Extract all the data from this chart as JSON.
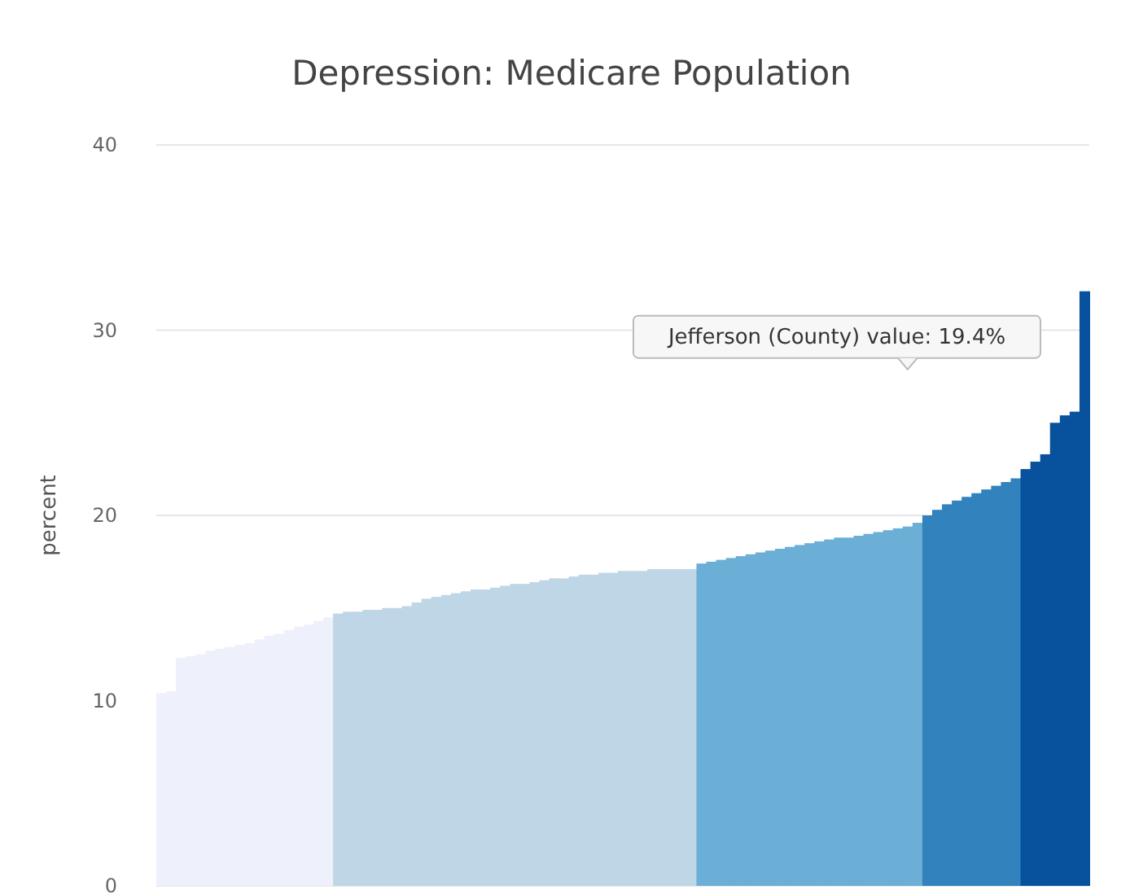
{
  "chart_data": {
    "type": "bar",
    "title": "Depression: Medicare Population",
    "ylabel": "percent",
    "categories": [
      null,
      null,
      null,
      null,
      null,
      null,
      null,
      null,
      null,
      null,
      null,
      null,
      null,
      null,
      null,
      null,
      null,
      null,
      null,
      null,
      null,
      null,
      null,
      null,
      null,
      null,
      null,
      null,
      null,
      null,
      null,
      null,
      null,
      null,
      null,
      null,
      null,
      null,
      null,
      null,
      null,
      null,
      null,
      null,
      null,
      null,
      null,
      null,
      null,
      null,
      null,
      null,
      null,
      null,
      null,
      null,
      null,
      null,
      null,
      null,
      null,
      null,
      null,
      null,
      null,
      null,
      null,
      null,
      null,
      null,
      null,
      null,
      null,
      null,
      null,
      null,
      null,
      null,
      null,
      null,
      null,
      null,
      null,
      null,
      null,
      null,
      null,
      null,
      null,
      null,
      null,
      null,
      null,
      null,
      null
    ],
    "values": [
      10.4,
      10.5,
      12.3,
      12.4,
      12.5,
      12.7,
      12.8,
      12.9,
      13.0,
      13.1,
      13.3,
      13.5,
      13.6,
      13.8,
      14.0,
      14.1,
      14.3,
      14.5,
      14.7,
      14.8,
      14.8,
      14.9,
      14.9,
      15.0,
      15.0,
      15.1,
      15.3,
      15.5,
      15.6,
      15.7,
      15.8,
      15.9,
      16.0,
      16.0,
      16.1,
      16.2,
      16.3,
      16.3,
      16.4,
      16.5,
      16.6,
      16.6,
      16.7,
      16.8,
      16.8,
      16.9,
      16.9,
      17.0,
      17.0,
      17.0,
      17.1,
      17.1,
      17.1,
      17.1,
      17.1,
      17.4,
      17.5,
      17.6,
      17.7,
      17.8,
      17.9,
      18.0,
      18.1,
      18.2,
      18.3,
      18.4,
      18.5,
      18.6,
      18.7,
      18.8,
      18.8,
      18.9,
      19.0,
      19.1,
      19.2,
      19.3,
      19.4,
      19.6,
      20.0,
      20.3,
      20.6,
      20.8,
      21.0,
      21.2,
      21.4,
      21.6,
      21.8,
      22.0,
      22.5,
      22.9,
      23.3,
      25.0,
      25.4,
      25.6,
      32.1
    ],
    "colors": [
      "#eef0fb",
      "#eef0fb",
      "#eef0fb",
      "#eef0fb",
      "#eef0fb",
      "#eef0fb",
      "#eef0fb",
      "#eef0fb",
      "#eef0fb",
      "#eef0fb",
      "#eef0fb",
      "#eef0fb",
      "#eef0fb",
      "#eef0fb",
      "#eef0fb",
      "#eef0fb",
      "#eef0fb",
      "#eef0fb",
      "#bed6e6",
      "#bed6e6",
      "#bed6e6",
      "#bed6e6",
      "#bed6e6",
      "#bed6e6",
      "#bed6e6",
      "#bed6e6",
      "#bed6e6",
      "#bed6e6",
      "#bed6e6",
      "#bed6e6",
      "#bed6e6",
      "#bed6e6",
      "#bed6e6",
      "#bed6e6",
      "#bed6e6",
      "#bed6e6",
      "#bed6e6",
      "#bed6e6",
      "#bed6e6",
      "#bed6e6",
      "#bed6e6",
      "#bed6e6",
      "#bed6e6",
      "#bed6e6",
      "#bed6e6",
      "#bed6e6",
      "#bed6e6",
      "#bed6e6",
      "#bed6e6",
      "#bed6e6",
      "#bed6e6",
      "#bed6e6",
      "#bed6e6",
      "#bed6e6",
      "#bed6e6",
      "#6baed6",
      "#6baed6",
      "#6baed6",
      "#6baed6",
      "#6baed6",
      "#6baed6",
      "#6baed6",
      "#6baed6",
      "#6baed6",
      "#6baed6",
      "#6baed6",
      "#6baed6",
      "#6baed6",
      "#6baed6",
      "#6baed6",
      "#6baed6",
      "#6baed6",
      "#6baed6",
      "#6baed6",
      "#6baed6",
      "#6baed6",
      "#6baed6",
      "#6baed6",
      "#3182bd",
      "#3182bd",
      "#3182bd",
      "#3182bd",
      "#3182bd",
      "#3182bd",
      "#3182bd",
      "#3182bd",
      "#3182bd",
      "#3182bd",
      "#08519c",
      "#08519c",
      "#08519c",
      "#08519c",
      "#08519c",
      "#08519c",
      "#08519c"
    ],
    "ylim": [
      0,
      40
    ],
    "yticks": [
      0,
      10,
      20,
      30,
      40
    ],
    "grid": "y",
    "annotations": [
      "Jefferson (County) value: 19.4%"
    ]
  }
}
